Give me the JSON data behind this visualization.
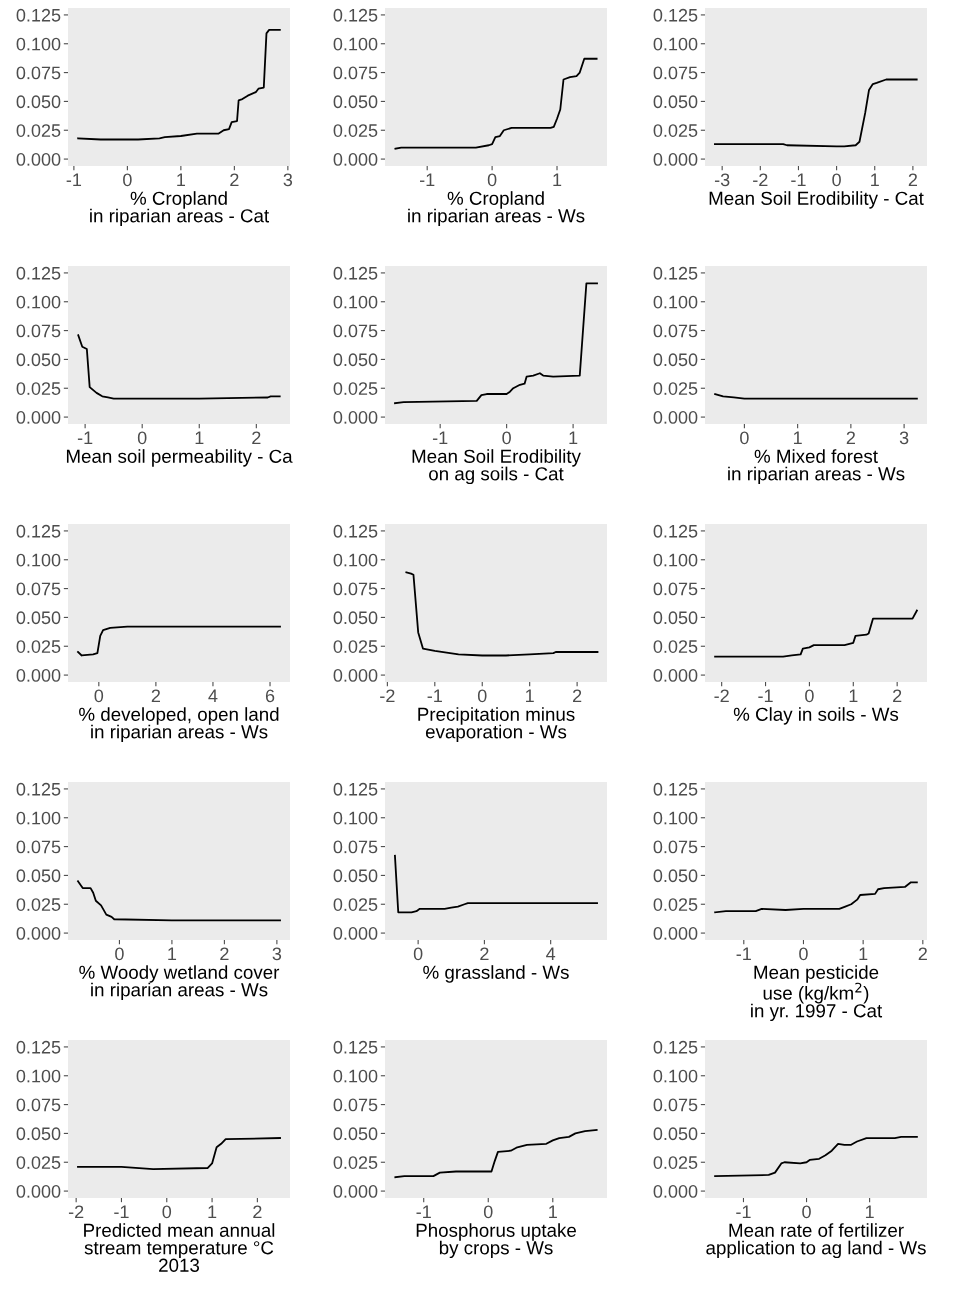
{
  "chart_data": [
    {
      "type": "line",
      "xlabel": "% Cropland\nin riparian areas - Cat",
      "x": [
        -0.92,
        -0.5,
        0.2,
        0.6,
        0.7,
        1.0,
        1.3,
        1.7,
        1.8,
        1.9,
        1.95,
        2.05,
        2.08,
        2.15,
        2.25,
        2.4,
        2.45,
        2.55,
        2.6,
        2.65,
        2.85
      ],
      "values": [
        0.018,
        0.017,
        0.017,
        0.018,
        0.019,
        0.02,
        0.022,
        0.022,
        0.025,
        0.026,
        0.032,
        0.033,
        0.051,
        0.052,
        0.055,
        0.058,
        0.061,
        0.062,
        0.109,
        0.112,
        0.112
      ],
      "color": "#000000",
      "xlim": [
        -1.11,
        3.04
      ],
      "xticks": [
        -1,
        0,
        1,
        2,
        3
      ],
      "ylim": [
        -0.006,
        0.131
      ],
      "yticks": [
        {
          "value": 0,
          "label": "0.000"
        },
        {
          "value": 0.025,
          "label": "0.025"
        },
        {
          "value": 0.05,
          "label": "0.050"
        },
        {
          "value": 0.075,
          "label": "0.075"
        },
        {
          "value": 0.1,
          "label": "0.100"
        },
        {
          "value": 0.125,
          "label": "0.125"
        }
      ]
    },
    {
      "type": "line",
      "xlabel": "% Cropland\nin riparian areas - Ws",
      "x": [
        -1.49,
        -1.4,
        -0.25,
        -0.05,
        0.0,
        0.05,
        0.12,
        0.18,
        0.3,
        0.9,
        0.95,
        1.0,
        1.05,
        1.1,
        1.2,
        1.3,
        1.35,
        1.42,
        1.61
      ],
      "values": [
        0.009,
        0.01,
        0.01,
        0.012,
        0.013,
        0.019,
        0.02,
        0.025,
        0.027,
        0.027,
        0.028,
        0.035,
        0.043,
        0.069,
        0.071,
        0.072,
        0.075,
        0.087,
        0.087
      ],
      "color": "#000000",
      "xlim": [
        -1.65,
        1.77
      ],
      "xticks": [
        -1,
        0,
        1
      ],
      "ylim": [
        -0.006,
        0.131
      ],
      "yticks": [
        {
          "value": 0,
          "label": "0.000"
        },
        {
          "value": 0.025,
          "label": "0.025"
        },
        {
          "value": 0.05,
          "label": "0.050"
        },
        {
          "value": 0.075,
          "label": "0.075"
        },
        {
          "value": 0.1,
          "label": "0.100"
        },
        {
          "value": 0.125,
          "label": "0.125"
        }
      ]
    },
    {
      "type": "line",
      "xlabel": "Mean Soil Erodibility - Cat",
      "x": [
        -3.19,
        -1.4,
        -1.3,
        0.0,
        0.2,
        0.5,
        0.6,
        0.75,
        0.85,
        0.95,
        1.05,
        1.3,
        2.1
      ],
      "values": [
        0.013,
        0.013,
        0.012,
        0.011,
        0.011,
        0.012,
        0.015,
        0.04,
        0.06,
        0.065,
        0.066,
        0.069,
        0.069
      ],
      "color": "#000000",
      "xlim": [
        -3.45,
        2.37
      ],
      "xticks": [
        -3,
        -2,
        -1,
        0,
        1,
        2
      ],
      "ylim": [
        -0.006,
        0.131
      ],
      "yticks": [
        {
          "value": 0,
          "label": "0.000"
        },
        {
          "value": 0.025,
          "label": "0.025"
        },
        {
          "value": 0.05,
          "label": "0.050"
        },
        {
          "value": 0.075,
          "label": "0.075"
        },
        {
          "value": 0.1,
          "label": "0.100"
        },
        {
          "value": 0.125,
          "label": "0.125"
        }
      ]
    },
    {
      "type": "line",
      "xlabel": "Mean soil permeability - Ca",
      "x": [
        -1.12,
        -1.05,
        -0.97,
        -0.92,
        -0.8,
        -0.7,
        -0.6,
        -0.5,
        1.0,
        2.2,
        2.25,
        2.41
      ],
      "values": [
        0.071,
        0.061,
        0.059,
        0.026,
        0.021,
        0.018,
        0.017,
        0.016,
        0.016,
        0.017,
        0.018,
        0.018
      ],
      "color": "#000000",
      "xlim": [
        -1.3,
        2.59
      ],
      "xticks": [
        -1,
        0,
        1,
        2
      ],
      "ylim": [
        -0.006,
        0.131
      ],
      "yticks": [
        {
          "value": 0,
          "label": "0.000"
        },
        {
          "value": 0.025,
          "label": "0.025"
        },
        {
          "value": 0.05,
          "label": "0.050"
        },
        {
          "value": 0.075,
          "label": "0.075"
        },
        {
          "value": 0.1,
          "label": "0.100"
        },
        {
          "value": 0.125,
          "label": "0.125"
        }
      ]
    },
    {
      "type": "line",
      "xlabel": "Mean Soil Erodibility\non ag soils - Cat",
      "x": [
        -1.68,
        -1.55,
        -0.45,
        -0.38,
        -0.3,
        0.0,
        0.05,
        0.1,
        0.2,
        0.27,
        0.3,
        0.4,
        0.5,
        0.55,
        0.7,
        1.1,
        1.2,
        1.36
      ],
      "values": [
        0.012,
        0.013,
        0.014,
        0.019,
        0.02,
        0.02,
        0.022,
        0.025,
        0.028,
        0.029,
        0.035,
        0.036,
        0.038,
        0.036,
        0.035,
        0.036,
        0.116,
        0.116
      ],
      "color": "#000000",
      "xlim": [
        -1.83,
        1.51
      ],
      "xticks": [
        -1,
        0,
        1
      ],
      "ylim": [
        -0.006,
        0.131
      ],
      "yticks": [
        {
          "value": 0,
          "label": "0.000"
        },
        {
          "value": 0.025,
          "label": "0.025"
        },
        {
          "value": 0.05,
          "label": "0.050"
        },
        {
          "value": 0.075,
          "label": "0.075"
        },
        {
          "value": 0.1,
          "label": "0.100"
        },
        {
          "value": 0.125,
          "label": "0.125"
        }
      ]
    },
    {
      "type": "line",
      "xlabel": "% Mixed forest\nin riparian areas - Ws",
      "x": [
        -0.55,
        -0.4,
        -0.2,
        0.0,
        3.24
      ],
      "values": [
        0.02,
        0.018,
        0.017,
        0.016,
        0.016
      ],
      "color": "#000000",
      "xlim": [
        -0.74,
        3.43
      ],
      "xticks": [
        0,
        1,
        2,
        3
      ],
      "ylim": [
        -0.006,
        0.131
      ],
      "yticks": [
        {
          "value": 0,
          "label": "0.000"
        },
        {
          "value": 0.025,
          "label": "0.025"
        },
        {
          "value": 0.05,
          "label": "0.050"
        },
        {
          "value": 0.075,
          "label": "0.075"
        },
        {
          "value": 0.1,
          "label": "0.100"
        },
        {
          "value": 0.125,
          "label": "0.125"
        }
      ]
    },
    {
      "type": "line",
      "xlabel": "% developed, open land\nin riparian areas - Ws",
      "x": [
        -0.73,
        -0.6,
        -0.2,
        -0.05,
        0.05,
        0.15,
        0.4,
        1.0,
        6.35
      ],
      "values": [
        0.02,
        0.017,
        0.018,
        0.019,
        0.034,
        0.039,
        0.041,
        0.042,
        0.042
      ],
      "color": "#000000",
      "xlim": [
        -1.08,
        6.7
      ],
      "xticks": [
        0,
        2,
        4,
        6
      ],
      "ylim": [
        -0.006,
        0.131
      ],
      "yticks": [
        {
          "value": 0,
          "label": "0.000"
        },
        {
          "value": 0.025,
          "label": "0.025"
        },
        {
          "value": 0.05,
          "label": "0.050"
        },
        {
          "value": 0.075,
          "label": "0.075"
        },
        {
          "value": 0.1,
          "label": "0.100"
        },
        {
          "value": 0.125,
          "label": "0.125"
        }
      ]
    },
    {
      "type": "line",
      "xlabel": "Precipitation minus\nevaporation - Ws",
      "x": [
        -1.6,
        -1.5,
        -1.45,
        -1.35,
        -1.25,
        -1.0,
        -0.5,
        0.0,
        0.5,
        1.0,
        1.5,
        1.55,
        2.43
      ],
      "values": [
        0.089,
        0.088,
        0.087,
        0.037,
        0.023,
        0.021,
        0.018,
        0.017,
        0.017,
        0.018,
        0.019,
        0.02,
        0.02
      ],
      "color": "#000000",
      "xlim": [
        -2.05,
        2.63
      ],
      "xticks": [
        -2,
        -1,
        0,
        1,
        2
      ],
      "ylim": [
        -0.006,
        0.131
      ],
      "yticks": [
        {
          "value": 0,
          "label": "0.000"
        },
        {
          "value": 0.025,
          "label": "0.025"
        },
        {
          "value": 0.05,
          "label": "0.050"
        },
        {
          "value": 0.075,
          "label": "0.075"
        },
        {
          "value": 0.1,
          "label": "0.100"
        },
        {
          "value": 0.125,
          "label": "0.125"
        }
      ]
    },
    {
      "type": "line",
      "xlabel": "% Clay in soils - Ws",
      "x": [
        -2.15,
        -0.8,
        -0.6,
        -0.4,
        -0.2,
        -0.15,
        0.0,
        0.1,
        0.8,
        1.0,
        1.05,
        1.3,
        1.35,
        1.45,
        2.35,
        2.45
      ],
      "values": [
        0.016,
        0.016,
        0.016,
        0.017,
        0.018,
        0.023,
        0.024,
        0.026,
        0.026,
        0.028,
        0.034,
        0.035,
        0.036,
        0.049,
        0.049,
        0.056
      ],
      "color": "#000000",
      "xlim": [
        -2.38,
        2.68
      ],
      "xticks": [
        -2,
        -1,
        0,
        1,
        2
      ],
      "ylim": [
        -0.006,
        0.131
      ],
      "yticks": [
        {
          "value": 0,
          "label": "0.000"
        },
        {
          "value": 0.025,
          "label": "0.025"
        },
        {
          "value": 0.05,
          "label": "0.050"
        },
        {
          "value": 0.075,
          "label": "0.075"
        },
        {
          "value": 0.1,
          "label": "0.100"
        },
        {
          "value": 0.125,
          "label": "0.125"
        }
      ]
    },
    {
      "type": "line",
      "xlabel": "% Woody wetland cover\nin riparian areas - Ws",
      "x": [
        -0.79,
        -0.7,
        -0.55,
        -0.5,
        -0.45,
        -0.35,
        -0.25,
        -0.15,
        -0.1,
        1.0,
        2.5,
        3.06
      ],
      "values": [
        0.045,
        0.039,
        0.039,
        0.035,
        0.028,
        0.024,
        0.016,
        0.014,
        0.012,
        0.011,
        0.011,
        0.011
      ],
      "color": "#000000",
      "xlim": [
        -0.98,
        3.25
      ],
      "xticks": [
        0,
        1,
        2,
        3
      ],
      "ylim": [
        -0.006,
        0.131
      ],
      "yticks": [
        {
          "value": 0,
          "label": "0.000"
        },
        {
          "value": 0.025,
          "label": "0.025"
        },
        {
          "value": 0.05,
          "label": "0.050"
        },
        {
          "value": 0.075,
          "label": "0.075"
        },
        {
          "value": 0.1,
          "label": "0.100"
        },
        {
          "value": 0.125,
          "label": "0.125"
        }
      ]
    },
    {
      "type": "line",
      "xlabel": "% grassland - Ws",
      "x": [
        -0.7,
        -0.6,
        -0.2,
        -0.05,
        0.05,
        0.8,
        1.0,
        1.2,
        1.4,
        1.5,
        5.4
      ],
      "values": [
        0.067,
        0.018,
        0.018,
        0.019,
        0.021,
        0.021,
        0.022,
        0.023,
        0.025,
        0.026,
        0.026
      ],
      "color": "#000000",
      "xlim": [
        -1.0,
        5.7
      ],
      "xticks": [
        0,
        2,
        4
      ],
      "ylim": [
        -0.006,
        0.131
      ],
      "yticks": [
        {
          "value": 0,
          "label": "0.000"
        },
        {
          "value": 0.025,
          "label": "0.025"
        },
        {
          "value": 0.05,
          "label": "0.050"
        },
        {
          "value": 0.075,
          "label": "0.075"
        },
        {
          "value": 0.1,
          "label": "0.100"
        },
        {
          "value": 0.125,
          "label": "0.125"
        }
      ]
    },
    {
      "type": "line",
      "xlabel": "Mean pesticide\nuse (kg/km$^{2}$)\nin yr. 1997 - Cat",
      "x": [
        -1.48,
        -1.3,
        -0.8,
        -0.7,
        -0.3,
        0.0,
        0.6,
        0.7,
        0.8,
        0.9,
        0.95,
        1.2,
        1.25,
        1.35,
        1.7,
        1.8,
        1.9
      ],
      "values": [
        0.018,
        0.019,
        0.019,
        0.021,
        0.02,
        0.021,
        0.021,
        0.023,
        0.025,
        0.029,
        0.033,
        0.034,
        0.038,
        0.039,
        0.04,
        0.044,
        0.044
      ],
      "color": "#000000",
      "xlim": [
        -1.65,
        2.07
      ],
      "xticks": [
        -1,
        0,
        1,
        2
      ],
      "ylim": [
        -0.006,
        0.131
      ],
      "yticks": [
        {
          "value": 0,
          "label": "0.000"
        },
        {
          "value": 0.025,
          "label": "0.025"
        },
        {
          "value": 0.05,
          "label": "0.050"
        },
        {
          "value": 0.075,
          "label": "0.075"
        },
        {
          "value": 0.1,
          "label": "0.100"
        },
        {
          "value": 0.125,
          "label": "0.125"
        }
      ]
    },
    {
      "type": "line",
      "xlabel": "Predicted mean annual\nstream temperature °C\n2013",
      "x": [
        -1.96,
        -1.0,
        -0.3,
        0.9,
        1.0,
        1.1,
        1.2,
        1.3,
        2.5
      ],
      "values": [
        0.021,
        0.021,
        0.019,
        0.02,
        0.024,
        0.038,
        0.041,
        0.045,
        0.046
      ],
      "color": "#000000",
      "xlim": [
        -2.18,
        2.72
      ],
      "xticks": [
        -2,
        -1,
        0,
        1,
        2
      ],
      "ylim": [
        -0.006,
        0.131
      ],
      "yticks": [
        {
          "value": 0,
          "label": "0.000"
        },
        {
          "value": 0.025,
          "label": "0.025"
        },
        {
          "value": 0.05,
          "label": "0.050"
        },
        {
          "value": 0.075,
          "label": "0.075"
        },
        {
          "value": 0.1,
          "label": "0.100"
        },
        {
          "value": 0.125,
          "label": "0.125"
        }
      ]
    },
    {
      "type": "line",
      "xlabel": "Phosphorus uptake\nby crops - Ws",
      "x": [
        -1.44,
        -1.3,
        -0.85,
        -0.75,
        -0.5,
        0.05,
        0.1,
        0.15,
        0.35,
        0.45,
        0.6,
        0.9,
        1.0,
        1.1,
        1.25,
        1.35,
        1.5,
        1.68
      ],
      "values": [
        0.012,
        0.013,
        0.013,
        0.016,
        0.017,
        0.017,
        0.026,
        0.034,
        0.035,
        0.038,
        0.04,
        0.041,
        0.044,
        0.046,
        0.047,
        0.05,
        0.052,
        0.053
      ],
      "color": "#000000",
      "xlim": [
        -1.6,
        1.84
      ],
      "xticks": [
        -1,
        0,
        1
      ],
      "ylim": [
        -0.006,
        0.131
      ],
      "yticks": [
        {
          "value": 0,
          "label": "0.000"
        },
        {
          "value": 0.025,
          "label": "0.025"
        },
        {
          "value": 0.05,
          "label": "0.050"
        },
        {
          "value": 0.075,
          "label": "0.075"
        },
        {
          "value": 0.1,
          "label": "0.100"
        },
        {
          "value": 0.125,
          "label": "0.125"
        }
      ]
    },
    {
      "type": "line",
      "xlabel": "Mean rate of fertilizer\napplication to ag land - Ws",
      "x": [
        -1.45,
        -0.6,
        -0.5,
        -0.4,
        -0.35,
        -0.1,
        0.0,
        0.05,
        0.2,
        0.3,
        0.4,
        0.5,
        0.6,
        0.7,
        0.8,
        0.95,
        1.4,
        1.5,
        1.75
      ],
      "values": [
        0.013,
        0.014,
        0.016,
        0.024,
        0.025,
        0.024,
        0.025,
        0.027,
        0.028,
        0.031,
        0.035,
        0.041,
        0.04,
        0.04,
        0.043,
        0.046,
        0.046,
        0.047,
        0.047
      ],
      "color": "#000000",
      "xlim": [
        -1.61,
        1.91
      ],
      "xticks": [
        -1,
        0,
        1
      ],
      "ylim": [
        -0.006,
        0.131
      ],
      "yticks": [
        {
          "value": 0,
          "label": "0.000"
        },
        {
          "value": 0.025,
          "label": "0.025"
        },
        {
          "value": 0.05,
          "label": "0.050"
        },
        {
          "value": 0.075,
          "label": "0.075"
        },
        {
          "value": 0.1,
          "label": "0.100"
        },
        {
          "value": 0.125,
          "label": "0.125"
        }
      ]
    }
  ]
}
